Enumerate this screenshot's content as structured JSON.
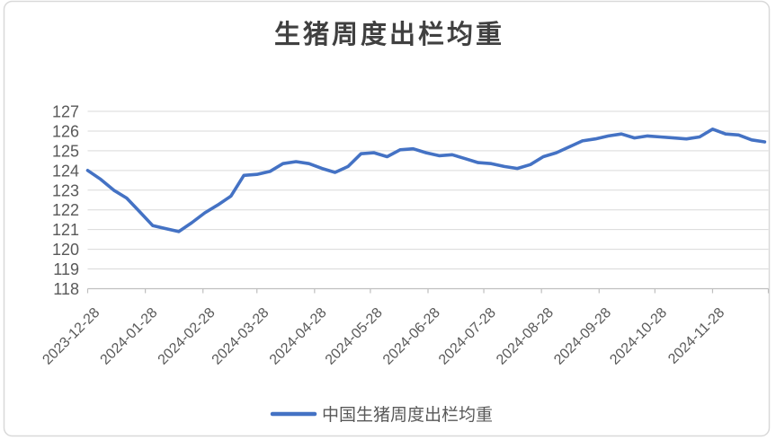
{
  "chart": {
    "frame_border_color": "#D9D9D9",
    "background_color": "#FFFFFF"
  },
  "chart_data": {
    "type": "line",
    "title": "生猪周度出栏均重",
    "xlabel": "",
    "ylabel": "",
    "ylim": [
      118,
      127
    ],
    "y_ticks": [
      118,
      119,
      120,
      121,
      122,
      123,
      124,
      125,
      126,
      127
    ],
    "grid": "horizontal",
    "legend_position": "bottom",
    "axis_range_x": [
      "2023-12-28",
      "2024-12-28"
    ],
    "x_ticks": [
      "2023-12-28",
      "2024-01-28",
      "2024-02-28",
      "2024-03-28",
      "2024-04-28",
      "2024-05-28",
      "2024-06-28",
      "2024-07-28",
      "2024-08-28",
      "2024-09-28",
      "2024-10-28",
      "2024-11-28",
      "2024-12-28"
    ],
    "x_tick_labels": [
      "2023-12-28",
      "2024-01-28",
      "2024-02-28",
      "2024-03-28",
      "2024-04-28",
      "2024-05-28",
      "2024-06-28",
      "2024-07-28",
      "2024-08-28",
      "2024-09-28",
      "2024-10-28",
      "2024-11-28"
    ],
    "x": [
      "2023-12-28",
      "2024-01-04",
      "2024-01-11",
      "2024-01-18",
      "2024-01-25",
      "2024-02-01",
      "2024-02-08",
      "2024-02-15",
      "2024-02-22",
      "2024-02-29",
      "2024-03-07",
      "2024-03-14",
      "2024-03-21",
      "2024-03-28",
      "2024-04-04",
      "2024-04-11",
      "2024-04-18",
      "2024-04-25",
      "2024-05-02",
      "2024-05-09",
      "2024-05-16",
      "2024-05-23",
      "2024-05-30",
      "2024-06-06",
      "2024-06-13",
      "2024-06-20",
      "2024-06-27",
      "2024-07-04",
      "2024-07-11",
      "2024-07-18",
      "2024-07-25",
      "2024-08-01",
      "2024-08-08",
      "2024-08-15",
      "2024-08-22",
      "2024-08-29",
      "2024-09-05",
      "2024-09-12",
      "2024-09-19",
      "2024-09-26",
      "2024-10-03",
      "2024-10-10",
      "2024-10-17",
      "2024-10-24",
      "2024-10-31",
      "2024-11-07",
      "2024-11-14",
      "2024-11-21",
      "2024-11-28",
      "2024-12-05",
      "2024-12-12",
      "2024-12-19",
      "2024-12-26"
    ],
    "series": [
      {
        "name": "中国生猪周度出栏均重",
        "color": "#4472C4",
        "values": [
          124.0,
          123.55,
          123.0,
          122.6,
          121.9,
          121.2,
          121.05,
          120.9,
          121.35,
          121.85,
          122.25,
          122.7,
          123.75,
          123.8,
          123.95,
          124.35,
          124.45,
          124.35,
          124.1,
          123.9,
          124.2,
          124.85,
          124.9,
          124.7,
          125.05,
          125.1,
          124.9,
          124.75,
          124.8,
          124.6,
          124.4,
          124.35,
          124.2,
          124.1,
          124.3,
          124.7,
          124.9,
          125.2,
          125.5,
          125.6,
          125.75,
          125.85,
          125.65,
          125.75,
          125.7,
          125.65,
          125.6,
          125.7,
          126.1,
          125.85,
          125.8,
          125.55,
          125.45
        ]
      }
    ],
    "colors": {
      "gridline": "#D9D9D9",
      "axis_line": "#BFBFBF",
      "tick_label": "#595959",
      "title": "#404040"
    }
  }
}
